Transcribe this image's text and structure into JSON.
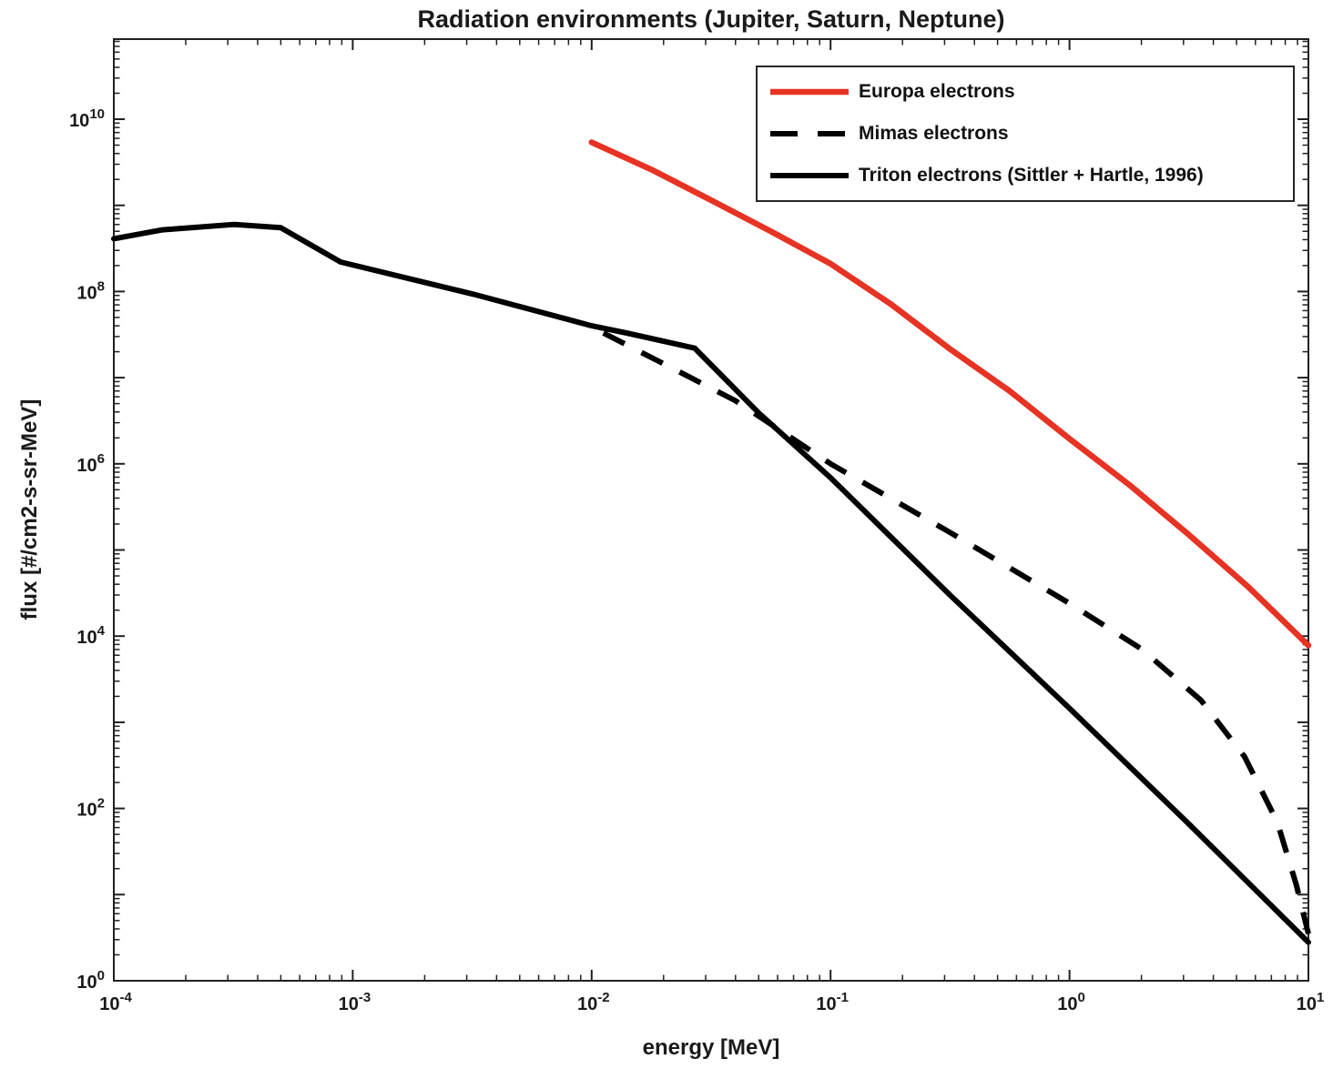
{
  "chart_data": {
    "type": "line",
    "title": "Radiation environments (Jupiter, Saturn, Neptune)",
    "xlabel": "energy [MeV]",
    "ylabel": "flux [#/cm2-s-sr-MeV]",
    "x_scale": "log",
    "y_scale": "log",
    "xlim": [
      0.0001,
      10
    ],
    "ylim": [
      1,
      85000000000
    ],
    "x_tick_exponents": [
      -4,
      -3,
      -2,
      -1,
      0,
      1
    ],
    "y_tick_label_exponents": [
      0,
      2,
      4,
      6,
      8,
      10
    ],
    "grid": false,
    "legend_position": "northeast",
    "axis_color": "#202020",
    "background_color": "#ffffff",
    "series": [
      {
        "id": "europa",
        "name": "Europa electrons",
        "color": "#e63323",
        "style": "solid",
        "width": 6.5,
        "points": [
          [
            0.01,
            5400000000
          ],
          [
            0.0178,
            2600000000
          ],
          [
            0.0316,
            1150000000
          ],
          [
            0.0562,
            500000000
          ],
          [
            0.1,
            210000000
          ],
          [
            0.178,
            72000000
          ],
          [
            0.316,
            21500000
          ],
          [
            0.562,
            7000000
          ],
          [
            1.0,
            1950000
          ],
          [
            1.78,
            570000
          ],
          [
            3.16,
            150000
          ],
          [
            5.62,
            37000
          ],
          [
            10,
            7800
          ]
        ]
      },
      {
        "id": "mimas",
        "name": "Mimas electrons",
        "color": "#000000",
        "style": "dashed",
        "width": 6,
        "points": [
          [
            0.0112,
            33000000
          ],
          [
            0.02,
            14500000
          ],
          [
            0.04,
            5400000
          ],
          [
            0.1,
            1000000
          ],
          [
            0.316,
            160000
          ],
          [
            1.0,
            24000
          ],
          [
            2.0,
            7100
          ],
          [
            3.55,
            1800
          ],
          [
            5.4,
            400
          ],
          [
            7.4,
            70
          ],
          [
            8.9,
            13
          ],
          [
            10,
            3.5
          ]
        ]
      },
      {
        "id": "triton",
        "name": "Triton electrons (Sittler + Hartle, 1996)",
        "color": "#000000",
        "style": "solid",
        "width": 6,
        "points": [
          [
            0.0001,
            410000000
          ],
          [
            0.00016,
            520000000
          ],
          [
            0.00032,
            600000000
          ],
          [
            0.0005,
            550000000
          ],
          [
            0.00089,
            220000000
          ],
          [
            0.0032,
            93000000
          ],
          [
            0.01,
            40000000
          ],
          [
            0.014,
            33000000
          ],
          [
            0.027,
            22000000
          ],
          [
            0.05,
            3900000
          ],
          [
            0.1,
            690000
          ],
          [
            0.316,
            30000
          ],
          [
            1.0,
            1450
          ],
          [
            3.16,
            66
          ],
          [
            10,
            2.8
          ]
        ]
      }
    ]
  }
}
